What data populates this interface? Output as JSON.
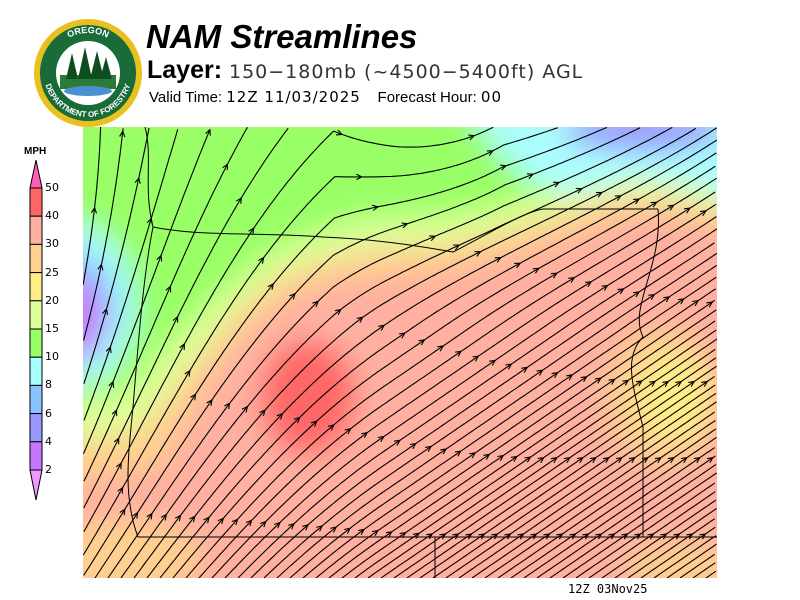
{
  "logo": {
    "text": "OREGON DEPARTMENT OF FORESTRY",
    "colors": {
      "ring": "#1a6b3a",
      "gold": "#e8c020"
    }
  },
  "header": {
    "title": "NAM Streamlines",
    "layer_label": "Layer:",
    "layer_value": "150−180mb (~4500−5400ft) AGL",
    "valid_label": "Valid Time:",
    "valid_value": "12Z 11/03/2025",
    "forecast_label": "Forecast Hour:",
    "forecast_value": "00"
  },
  "colorbar": {
    "unit": "MPH",
    "labels": [
      "50",
      "40",
      "30",
      "25",
      "20",
      "15",
      "10",
      "8",
      "6",
      "4",
      "2"
    ],
    "colors": [
      "#ff6666",
      "#ffb0a0",
      "#ffd090",
      "#ffee88",
      "#ddff99",
      "#99ff66",
      "#aaffff",
      "#88c4ff",
      "#9999ff",
      "#c777ff"
    ],
    "over_color": "#ff5fb0",
    "under_color": "#ee99ff"
  },
  "map": {
    "field": "wind speed streamlines",
    "timestamp": "12Z 03Nov25"
  }
}
